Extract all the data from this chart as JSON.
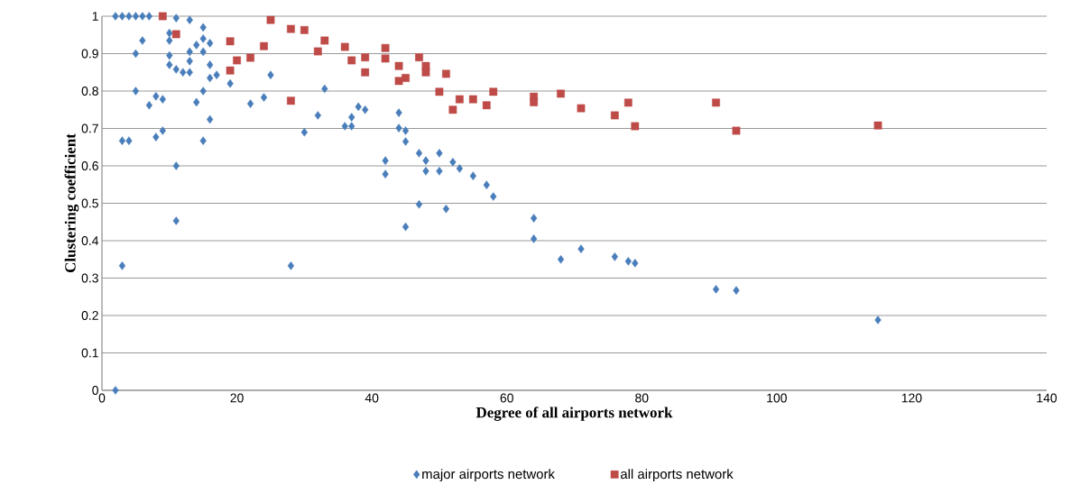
{
  "chart_data": {
    "type": "scatter",
    "xlabel": "Degree of all airports network",
    "ylabel": "Clustering coefficient",
    "xlim": [
      0,
      140
    ],
    "xticks": [
      0,
      20,
      40,
      60,
      80,
      100,
      120,
      140
    ],
    "ylim": [
      0,
      1
    ],
    "yticks": [
      0,
      {
        "value": 0.1,
        "label": "0.1"
      },
      {
        "value": 0.2,
        "label": "0.2"
      },
      {
        "value": 0.3,
        "label": "0.3"
      },
      {
        "value": 0.4,
        "label": "0.4"
      },
      {
        "value": 0.5,
        "label": "0.5"
      },
      {
        "value": 0.6,
        "label": "0.6"
      },
      {
        "value": 0.7,
        "label": "0.7"
      },
      {
        "value": 0.8,
        "label": "0.8"
      },
      {
        "value": 0.9,
        "label": "0.9"
      },
      1
    ],
    "grid": "y",
    "legend": "bottom",
    "series": [
      {
        "name": "major airports network",
        "color": "#4a7ebb",
        "marker": "diamond",
        "x": [
          2,
          3,
          4,
          5,
          6,
          7,
          11,
          13,
          15,
          6,
          5,
          10,
          10,
          10,
          10,
          11,
          12,
          13,
          13,
          14,
          15,
          16,
          15,
          13,
          16,
          17,
          16,
          19,
          25,
          5,
          8,
          9,
          7,
          15,
          14,
          16,
          22,
          24,
          3,
          4,
          8,
          9,
          15,
          11,
          11,
          3,
          2,
          33,
          32,
          30,
          28,
          38,
          39,
          37,
          36,
          37,
          44,
          44,
          45,
          45,
          42,
          42,
          47,
          48,
          48,
          50,
          50,
          52,
          53,
          55,
          57,
          58,
          47,
          51,
          45,
          64,
          64,
          68,
          71,
          76,
          78,
          79,
          91,
          94,
          115
        ],
        "values": [
          1,
          1,
          1,
          1,
          1,
          1,
          0.995,
          0.99,
          0.97,
          0.935,
          0.9,
          0.955,
          0.935,
          0.895,
          0.87,
          0.858,
          0.85,
          0.85,
          0.905,
          0.923,
          0.94,
          0.928,
          0.905,
          0.88,
          0.87,
          0.843,
          0.835,
          0.82,
          0.843,
          0.8,
          0.786,
          0.778,
          0.762,
          0.8,
          0.77,
          0.724,
          0.766,
          0.783,
          0.667,
          0.667,
          0.677,
          0.694,
          0.667,
          0.6,
          0.453,
          0.333,
          0,
          0.806,
          0.735,
          0.69,
          0.333,
          0.758,
          0.75,
          0.73,
          0.706,
          0.706,
          0.742,
          0.701,
          0.694,
          0.665,
          0.614,
          0.578,
          0.634,
          0.614,
          0.586,
          0.634,
          0.586,
          0.61,
          0.593,
          0.573,
          0.549,
          0.518,
          0.497,
          0.485,
          0.437,
          0.46,
          0.405,
          0.35,
          0.378,
          0.357,
          0.345,
          0.34,
          0.27,
          0.267,
          0.188
        ]
      },
      {
        "name": "all airports network",
        "color": "#be4b48",
        "marker": "square",
        "x": [
          9,
          11,
          19,
          20,
          22,
          24,
          19,
          25,
          28,
          30,
          33,
          32,
          28,
          36,
          37,
          39,
          39,
          42,
          42,
          44,
          44,
          45,
          47,
          48,
          48,
          51,
          50,
          52,
          53,
          55,
          57,
          58,
          64,
          64,
          68,
          71,
          76,
          78,
          79,
          91,
          94,
          115
        ],
        "values": [
          1,
          0.952,
          0.933,
          0.882,
          0.889,
          0.92,
          0.855,
          0.99,
          0.966,
          0.963,
          0.935,
          0.906,
          0.774,
          0.918,
          0.882,
          0.89,
          0.85,
          0.915,
          0.887,
          0.867,
          0.827,
          0.835,
          0.89,
          0.867,
          0.85,
          0.846,
          0.798,
          0.75,
          0.778,
          0.778,
          0.762,
          0.798,
          0.785,
          0.77,
          0.793,
          0.754,
          0.735,
          0.769,
          0.706,
          0.769,
          0.694,
          0.708
        ]
      }
    ]
  }
}
